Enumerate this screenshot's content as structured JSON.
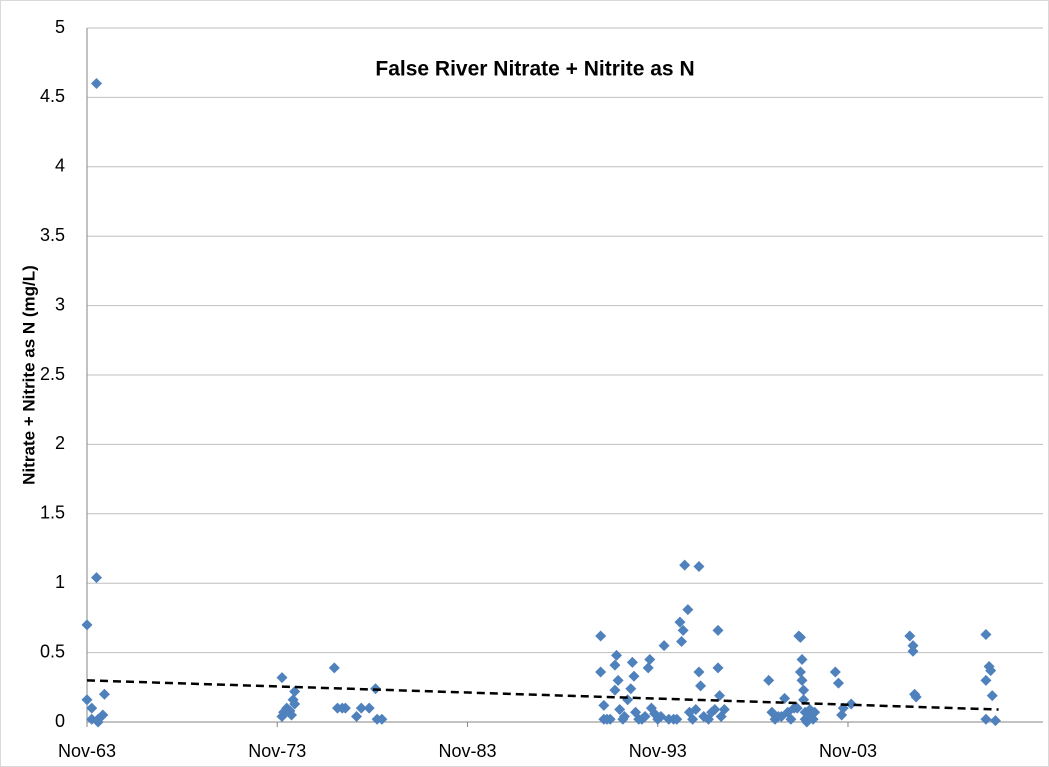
{
  "chart_data": {
    "type": "scatter",
    "title": "False River Nitrate + Nitrite as N",
    "y_label": "Nitrate + Nitrite as N (mg/L)",
    "color": "#4f81bd",
    "grid": true,
    "xlim": [
      "1963-11",
      "2014-02"
    ],
    "xticks": [
      {
        "value": "1963-11",
        "label": "Nov-63"
      },
      {
        "value": "1973-11",
        "label": "Nov-73"
      },
      {
        "value": "1983-11",
        "label": "Nov-83"
      },
      {
        "value": "1993-11",
        "label": "Nov-93"
      },
      {
        "value": "2003-11",
        "label": "Nov-03"
      }
    ],
    "ylim": [
      0,
      5
    ],
    "yticks": [
      0,
      0.5,
      1,
      1.5,
      2,
      2.5,
      3,
      3.5,
      4,
      4.5,
      5
    ],
    "x": [
      "1963-11",
      "1963-11",
      "1964-05",
      "1964-05",
      "1964-02",
      "1964-02",
      "1964-06",
      "1964-09",
      "1964-10",
      "1964-06",
      "1974-02",
      "1974-02",
      "1974-03",
      "1974-05",
      "1974-07",
      "1974-09",
      "1974-10",
      "1974-10",
      "1974-08",
      "1976-11",
      "1977-01",
      "1977-04",
      "1977-06",
      "1978-01",
      "1978-04",
      "1978-09",
      "1979-01",
      "1979-02",
      "1979-05",
      "1990-11",
      "1990-11",
      "1991-01",
      "1991-01",
      "1991-03",
      "1991-05",
      "1991-08",
      "1991-08",
      "1991-09",
      "1991-10",
      "1991-11",
      "1992-01",
      "1992-02",
      "1992-04",
      "1992-06",
      "1992-07",
      "1992-08",
      "1992-09",
      "1992-11",
      "1993-01",
      "1993-03",
      "1993-05",
      "1993-06",
      "1993-07",
      "1993-09",
      "1993-11",
      "1994-01",
      "1994-03",
      "1994-06",
      "1994-09",
      "1994-11",
      "1995-01",
      "1995-02",
      "1995-03",
      "1995-04",
      "1995-06",
      "1995-07",
      "1995-09",
      "1995-11",
      "1996-01",
      "1996-01",
      "1996-02",
      "1996-04",
      "1996-07",
      "1996-09",
      "1996-11",
      "1997-01",
      "1997-01",
      "1997-02",
      "1997-03",
      "1997-05",
      "1999-09",
      "1999-11",
      "2000-01",
      "2000-03",
      "2000-05",
      "2000-07",
      "2000-09",
      "2000-11",
      "2001-01",
      "2001-03",
      "2001-04",
      "2001-05",
      "2001-05",
      "2001-06",
      "2001-06",
      "2001-07",
      "2001-07",
      "2001-08",
      "2001-08",
      "2001-09",
      "2001-10",
      "2001-11",
      "2002-01",
      "2002-02",
      "2003-03",
      "2003-05",
      "2003-07",
      "2003-08",
      "2004-01",
      "2007-02",
      "2007-04",
      "2007-04",
      "2007-05",
      "2007-06",
      "2011-02",
      "2011-02",
      "2011-02",
      "2011-04",
      "2011-05",
      "2011-06",
      "2011-08"
    ],
    "values": [
      0.7,
      0.16,
      4.6,
      1.04,
      0.1,
      0.02,
      0,
      0.05,
      0.2,
      0.02,
      0.32,
      0.04,
      0.07,
      0.1,
      0.08,
      0.16,
      0.22,
      0.13,
      0.05,
      0.39,
      0.1,
      0.1,
      0.1,
      0.04,
      0.1,
      0.1,
      0.24,
      0.02,
      0.02,
      0.62,
      0.36,
      0.12,
      0.02,
      0.02,
      0.02,
      0.23,
      0.41,
      0.48,
      0.3,
      0.09,
      0.02,
      0.04,
      0.16,
      0.24,
      0.43,
      0.33,
      0.07,
      0.02,
      0.02,
      0.04,
      0.39,
      0.45,
      0.1,
      0.06,
      0.02,
      0.04,
      0.55,
      0.02,
      0.02,
      0.02,
      0.72,
      0.58,
      0.66,
      1.13,
      0.81,
      0.07,
      0.02,
      0.09,
      0.36,
      1.12,
      0.26,
      0.04,
      0.02,
      0.07,
      0.09,
      0.66,
      0.39,
      0.19,
      0.04,
      0.09,
      0.3,
      0.07,
      0.02,
      0.04,
      0.04,
      0.17,
      0.07,
      0.02,
      0.1,
      0.1,
      0.62,
      0.61,
      0.36,
      0.45,
      0.3,
      0.16,
      0.23,
      0.07,
      0.02,
      0,
      0.04,
      0.09,
      0.02,
      0.07,
      0.36,
      0.28,
      0.05,
      0.1,
      0.13,
      0.62,
      0.55,
      0.51,
      0.2,
      0.18,
      0.63,
      0.3,
      0.02,
      0.4,
      0.37,
      0.19,
      0.01
    ],
    "trendline": {
      "x": [
        "1963-11",
        "2011-10"
      ],
      "values": [
        0.3,
        0.09
      ]
    }
  }
}
